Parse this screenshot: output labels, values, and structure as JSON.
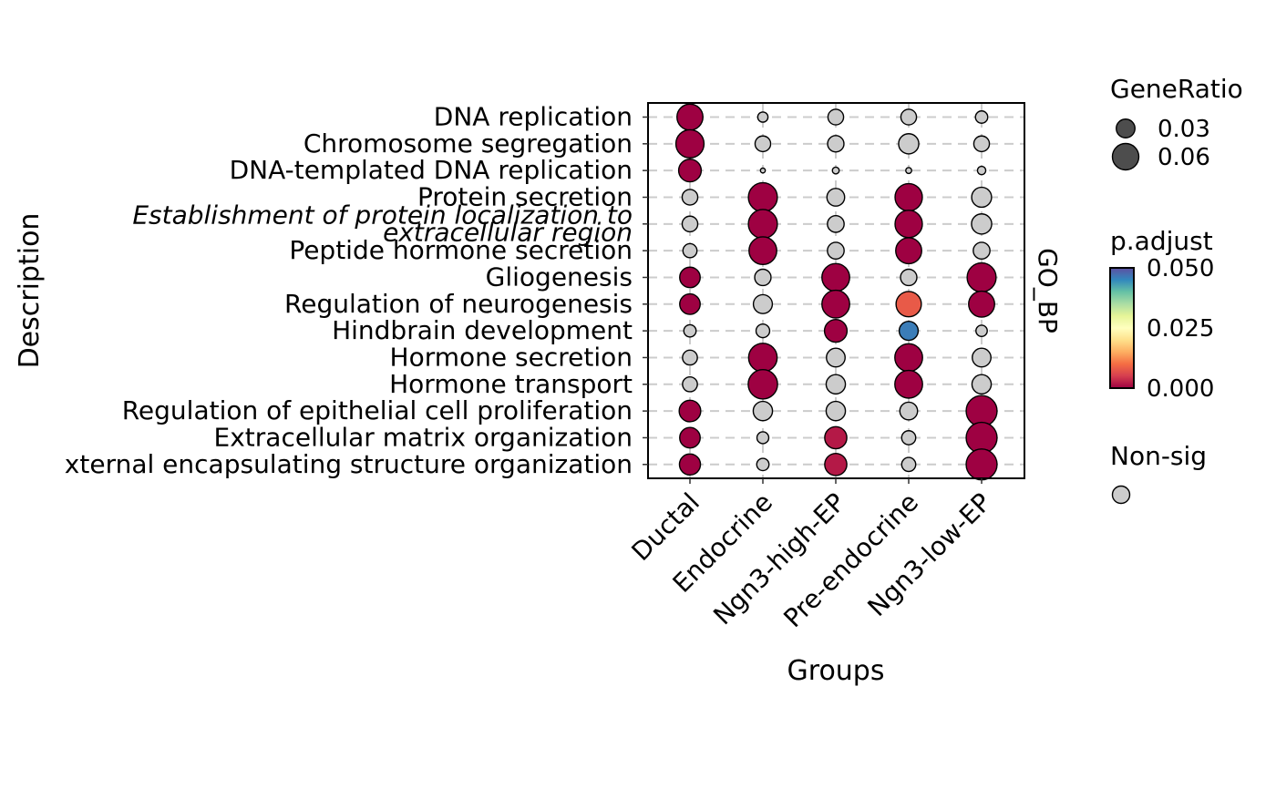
{
  "chart_data": {
    "type": "dot",
    "xlabel": "Groups",
    "ylabel": "Description",
    "facet_label": "GO_BP",
    "categories": [
      "Ductal",
      "Endocrine",
      "Ngn3-high-EP",
      "Pre-endocrine",
      "Ngn3-low-EP"
    ],
    "terms": [
      "DNA replication",
      "Chromosome segregation",
      "DNA-templated DNA replication",
      "Protein secretion",
      "Establishment of protein localization to extracellular region",
      "Peptide hormone secretion",
      "Gliogenesis",
      "Regulation of neurogenesis",
      "Hindbrain development",
      "Hormone secretion",
      "Hormone transport",
      "Regulation of epithelial cell proliferation",
      "Extracellular matrix organization",
      "External encapsulating structure organization"
    ],
    "italic_terms": [
      "Establishment of protein localization to extracellular region"
    ],
    "term_display_lines": {
      "Establishment of protein localization to extracellular region": [
        "Establishment of protein localization to",
        "extracellular region"
      ],
      "External encapsulating structure organization": [
        "xternal encapsulating structure organization"
      ]
    },
    "points": [
      {
        "term": "DNA replication",
        "group": "Ductal",
        "gene_ratio": 0.058,
        "p_adjust": 0.0
      },
      {
        "term": "DNA replication",
        "group": "Endocrine",
        "gene_ratio": 0.009,
        "sig": false
      },
      {
        "term": "DNA replication",
        "group": "Ngn3-high-EP",
        "gene_ratio": 0.021,
        "sig": false
      },
      {
        "term": "DNA replication",
        "group": "Pre-endocrine",
        "gene_ratio": 0.021,
        "sig": false
      },
      {
        "term": "DNA replication",
        "group": "Ngn3-low-EP",
        "gene_ratio": 0.013,
        "sig": false
      },
      {
        "term": "Chromosome segregation",
        "group": "Ductal",
        "gene_ratio": 0.068,
        "p_adjust": 0.0
      },
      {
        "term": "Chromosome segregation",
        "group": "Endocrine",
        "gene_ratio": 0.021,
        "sig": false
      },
      {
        "term": "Chromosome segregation",
        "group": "Ngn3-high-EP",
        "gene_ratio": 0.023,
        "sig": false
      },
      {
        "term": "Chromosome segregation",
        "group": "Pre-endocrine",
        "gene_ratio": 0.035,
        "sig": false
      },
      {
        "term": "Chromosome segregation",
        "group": "Ngn3-low-EP",
        "gene_ratio": 0.021,
        "sig": false
      },
      {
        "term": "DNA-templated DNA replication",
        "group": "Ductal",
        "gene_ratio": 0.044,
        "p_adjust": 0.0
      },
      {
        "term": "DNA-templated DNA replication",
        "group": "Endocrine",
        "gene_ratio": 0.002,
        "sig": false
      },
      {
        "term": "DNA-templated DNA replication",
        "group": "Ngn3-high-EP",
        "gene_ratio": 0.004,
        "sig": false
      },
      {
        "term": "DNA-templated DNA replication",
        "group": "Pre-endocrine",
        "gene_ratio": 0.003,
        "sig": false
      },
      {
        "term": "DNA-templated DNA replication",
        "group": "Ngn3-low-EP",
        "gene_ratio": 0.006,
        "sig": false
      },
      {
        "term": "Protein secretion",
        "group": "Ductal",
        "gene_ratio": 0.021,
        "sig": false
      },
      {
        "term": "Protein secretion",
        "group": "Endocrine",
        "gene_ratio": 0.072,
        "p_adjust": 0.0
      },
      {
        "term": "Protein secretion",
        "group": "Ngn3-high-EP",
        "gene_ratio": 0.027,
        "sig": false
      },
      {
        "term": "Protein secretion",
        "group": "Pre-endocrine",
        "gene_ratio": 0.064,
        "p_adjust": 0.0
      },
      {
        "term": "Protein secretion",
        "group": "Ngn3-low-EP",
        "gene_ratio": 0.034,
        "sig": false
      },
      {
        "term": "Establishment of protein localization to extracellular region",
        "group": "Ductal",
        "gene_ratio": 0.021,
        "sig": false
      },
      {
        "term": "Establishment of protein localization to extracellular region",
        "group": "Endocrine",
        "gene_ratio": 0.072,
        "p_adjust": 0.0
      },
      {
        "term": "Establishment of protein localization to extracellular region",
        "group": "Ngn3-high-EP",
        "gene_ratio": 0.024,
        "sig": false
      },
      {
        "term": "Establishment of protein localization to extracellular region",
        "group": "Pre-endocrine",
        "gene_ratio": 0.064,
        "p_adjust": 0.0
      },
      {
        "term": "Establishment of protein localization to extracellular region",
        "group": "Ngn3-low-EP",
        "gene_ratio": 0.035,
        "sig": false
      },
      {
        "term": "Peptide hormone secretion",
        "group": "Ductal",
        "gene_ratio": 0.017,
        "sig": false
      },
      {
        "term": "Peptide hormone secretion",
        "group": "Endocrine",
        "gene_ratio": 0.066,
        "p_adjust": 0.0
      },
      {
        "term": "Peptide hormone secretion",
        "group": "Ngn3-high-EP",
        "gene_ratio": 0.024,
        "sig": false
      },
      {
        "term": "Peptide hormone secretion",
        "group": "Pre-endocrine",
        "gene_ratio": 0.058,
        "p_adjust": 0.0
      },
      {
        "term": "Peptide hormone secretion",
        "group": "Ngn3-low-EP",
        "gene_ratio": 0.024,
        "sig": false
      },
      {
        "term": "Gliogenesis",
        "group": "Ductal",
        "gene_ratio": 0.036,
        "p_adjust": 0.0
      },
      {
        "term": "Gliogenesis",
        "group": "Endocrine",
        "gene_ratio": 0.023,
        "sig": false
      },
      {
        "term": "Gliogenesis",
        "group": "Ngn3-high-EP",
        "gene_ratio": 0.066,
        "p_adjust": 0.0
      },
      {
        "term": "Gliogenesis",
        "group": "Pre-endocrine",
        "gene_ratio": 0.023,
        "sig": false
      },
      {
        "term": "Gliogenesis",
        "group": "Ngn3-low-EP",
        "gene_ratio": 0.072,
        "p_adjust": 0.0
      },
      {
        "term": "Regulation of neurogenesis",
        "group": "Ductal",
        "gene_ratio": 0.036,
        "p_adjust": 0.0
      },
      {
        "term": "Regulation of neurogenesis",
        "group": "Endocrine",
        "gene_ratio": 0.031,
        "sig": false
      },
      {
        "term": "Regulation of neurogenesis",
        "group": "Ngn3-high-EP",
        "gene_ratio": 0.066,
        "p_adjust": 0.0
      },
      {
        "term": "Regulation of neurogenesis",
        "group": "Pre-endocrine",
        "gene_ratio": 0.055,
        "p_adjust": 0.008
      },
      {
        "term": "Regulation of neurogenesis",
        "group": "Ngn3-low-EP",
        "gene_ratio": 0.058,
        "p_adjust": 0.0
      },
      {
        "term": "Hindbrain development",
        "group": "Ductal",
        "gene_ratio": 0.013,
        "sig": false
      },
      {
        "term": "Hindbrain development",
        "group": "Endocrine",
        "gene_ratio": 0.016,
        "sig": false
      },
      {
        "term": "Hindbrain development",
        "group": "Ngn3-high-EP",
        "gene_ratio": 0.044,
        "p_adjust": 0.0
      },
      {
        "term": "Hindbrain development",
        "group": "Pre-endocrine",
        "gene_ratio": 0.031,
        "p_adjust": 0.046
      },
      {
        "term": "Hindbrain development",
        "group": "Ngn3-low-EP",
        "gene_ratio": 0.011,
        "sig": false
      },
      {
        "term": "Hormone secretion",
        "group": "Ductal",
        "gene_ratio": 0.019,
        "sig": false
      },
      {
        "term": "Hormone secretion",
        "group": "Endocrine",
        "gene_ratio": 0.07,
        "p_adjust": 0.0
      },
      {
        "term": "Hormone secretion",
        "group": "Ngn3-high-EP",
        "gene_ratio": 0.03,
        "sig": false
      },
      {
        "term": "Hormone secretion",
        "group": "Pre-endocrine",
        "gene_ratio": 0.066,
        "p_adjust": 0.0
      },
      {
        "term": "Hormone secretion",
        "group": "Ngn3-low-EP",
        "gene_ratio": 0.03,
        "sig": false
      },
      {
        "term": "Hormone transport",
        "group": "Ductal",
        "gene_ratio": 0.019,
        "sig": false
      },
      {
        "term": "Hormone transport",
        "group": "Endocrine",
        "gene_ratio": 0.074,
        "p_adjust": 0.0
      },
      {
        "term": "Hormone transport",
        "group": "Ngn3-high-EP",
        "gene_ratio": 0.032,
        "sig": false
      },
      {
        "term": "Hormone transport",
        "group": "Pre-endocrine",
        "gene_ratio": 0.066,
        "p_adjust": 0.0
      },
      {
        "term": "Hormone transport",
        "group": "Ngn3-low-EP",
        "gene_ratio": 0.032,
        "sig": false
      },
      {
        "term": "Regulation of epithelial cell proliferation",
        "group": "Ductal",
        "gene_ratio": 0.04,
        "p_adjust": 0.0
      },
      {
        "term": "Regulation of epithelial cell proliferation",
        "group": "Endocrine",
        "gene_ratio": 0.032,
        "sig": false
      },
      {
        "term": "Regulation of epithelial cell proliferation",
        "group": "Ngn3-high-EP",
        "gene_ratio": 0.032,
        "sig": false
      },
      {
        "term": "Regulation of epithelial cell proliferation",
        "group": "Pre-endocrine",
        "gene_ratio": 0.027,
        "sig": false
      },
      {
        "term": "Regulation of epithelial cell proliferation",
        "group": "Ngn3-low-EP",
        "gene_ratio": 0.082,
        "p_adjust": 0.0
      },
      {
        "term": "Extracellular matrix organization",
        "group": "Ductal",
        "gene_ratio": 0.036,
        "p_adjust": 0.0
      },
      {
        "term": "Extracellular matrix organization",
        "group": "Endocrine",
        "gene_ratio": 0.012,
        "sig": false
      },
      {
        "term": "Extracellular matrix organization",
        "group": "Ngn3-high-EP",
        "gene_ratio": 0.042,
        "p_adjust": 0.002
      },
      {
        "term": "Extracellular matrix organization",
        "group": "Pre-endocrine",
        "gene_ratio": 0.017,
        "sig": false
      },
      {
        "term": "Extracellular matrix organization",
        "group": "Ngn3-low-EP",
        "gene_ratio": 0.082,
        "p_adjust": 0.0
      },
      {
        "term": "External encapsulating structure organization",
        "group": "Ductal",
        "gene_ratio": 0.038,
        "p_adjust": 0.0
      },
      {
        "term": "External encapsulating structure organization",
        "group": "Endocrine",
        "gene_ratio": 0.013,
        "sig": false
      },
      {
        "term": "External encapsulating structure organization",
        "group": "Ngn3-high-EP",
        "gene_ratio": 0.042,
        "p_adjust": 0.002
      },
      {
        "term": "External encapsulating structure organization",
        "group": "Pre-endocrine",
        "gene_ratio": 0.017,
        "sig": false
      },
      {
        "term": "External encapsulating structure organization",
        "group": "Ngn3-low-EP",
        "gene_ratio": 0.082,
        "p_adjust": 0.0
      }
    ],
    "size_legend": {
      "title": "GeneRatio",
      "breaks": [
        0.03,
        0.06
      ],
      "labels": [
        "0.03",
        "0.06"
      ],
      "fill": "#4d4d4d"
    },
    "color_legend": {
      "title": "p.adjust",
      "range": [
        0.0,
        0.05
      ],
      "labels": [
        "0.050",
        "0.025",
        "0.000"
      ],
      "palette": [
        "#9e0142",
        "#d53e4f",
        "#f46d43",
        "#fdae61",
        "#fee08b",
        "#ffffbf",
        "#e6f598",
        "#abdda4",
        "#66c2a5",
        "#3288bd",
        "#5e4fa2"
      ]
    },
    "nonsig_legend": {
      "title": "Non-sig",
      "color": "#cccccc"
    },
    "grid": true,
    "legend_position": "right"
  }
}
